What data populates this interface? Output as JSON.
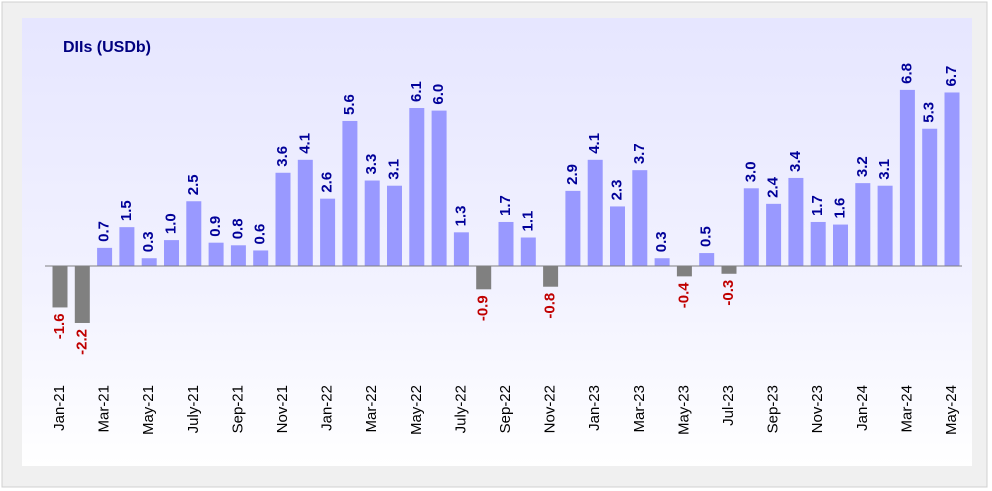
{
  "chart_data": {
    "type": "bar",
    "title": "DIIs (USDb)",
    "categories": [
      "Jan-21",
      null,
      "Mar-21",
      null,
      "May-21",
      null,
      "July-21",
      null,
      "Sep-21",
      null,
      "Nov-21",
      null,
      "Jan-22",
      null,
      "Mar-22",
      null,
      "May-22",
      null,
      "July-22",
      null,
      "Sep-22",
      null,
      "Nov-22",
      null,
      "Jan-23",
      null,
      "Mar-23",
      null,
      "May-23",
      null,
      "Jul-23",
      null,
      "Sep-23",
      null,
      "Nov-23",
      null,
      "Jan-24",
      null,
      "Mar-24",
      null,
      "May-24"
    ],
    "values": [
      -1.6,
      -2.2,
      0.7,
      1.5,
      0.3,
      1.0,
      2.5,
      0.9,
      0.8,
      0.6,
      3.6,
      4.1,
      2.6,
      5.6,
      3.3,
      3.1,
      6.1,
      6.0,
      1.3,
      -0.9,
      1.7,
      1.1,
      -0.8,
      2.9,
      4.1,
      2.3,
      3.7,
      0.3,
      -0.4,
      0.5,
      -0.3,
      3.0,
      2.4,
      3.4,
      1.7,
      1.6,
      3.2,
      3.1,
      6.8,
      5.3,
      6.7
    ],
    "value_labels": [
      "-1.6",
      "-2.2",
      "0.7",
      "1.5",
      "0.3",
      "1.0",
      "2.5",
      "0.9",
      "0.8",
      "0.6",
      "3.6",
      "4.1",
      "2.6",
      "5.6",
      "3.3",
      "3.1",
      "6.1",
      "6.0",
      "1.3",
      "-0.9",
      "1.7",
      "1.1",
      "-0.8",
      "2.9",
      "4.1",
      "2.3",
      "3.7",
      "0.3",
      "-0.4",
      "0.5",
      "-0.3",
      "3.0",
      "2.4",
      "3.4",
      "1.7",
      "1.6",
      "3.2",
      "3.1",
      "6.8",
      "5.3",
      "6.7"
    ],
    "color": "#9999ff",
    "negative_color": "#808080",
    "label_color": "#000099",
    "negative_label_color": "#c00000"
  }
}
